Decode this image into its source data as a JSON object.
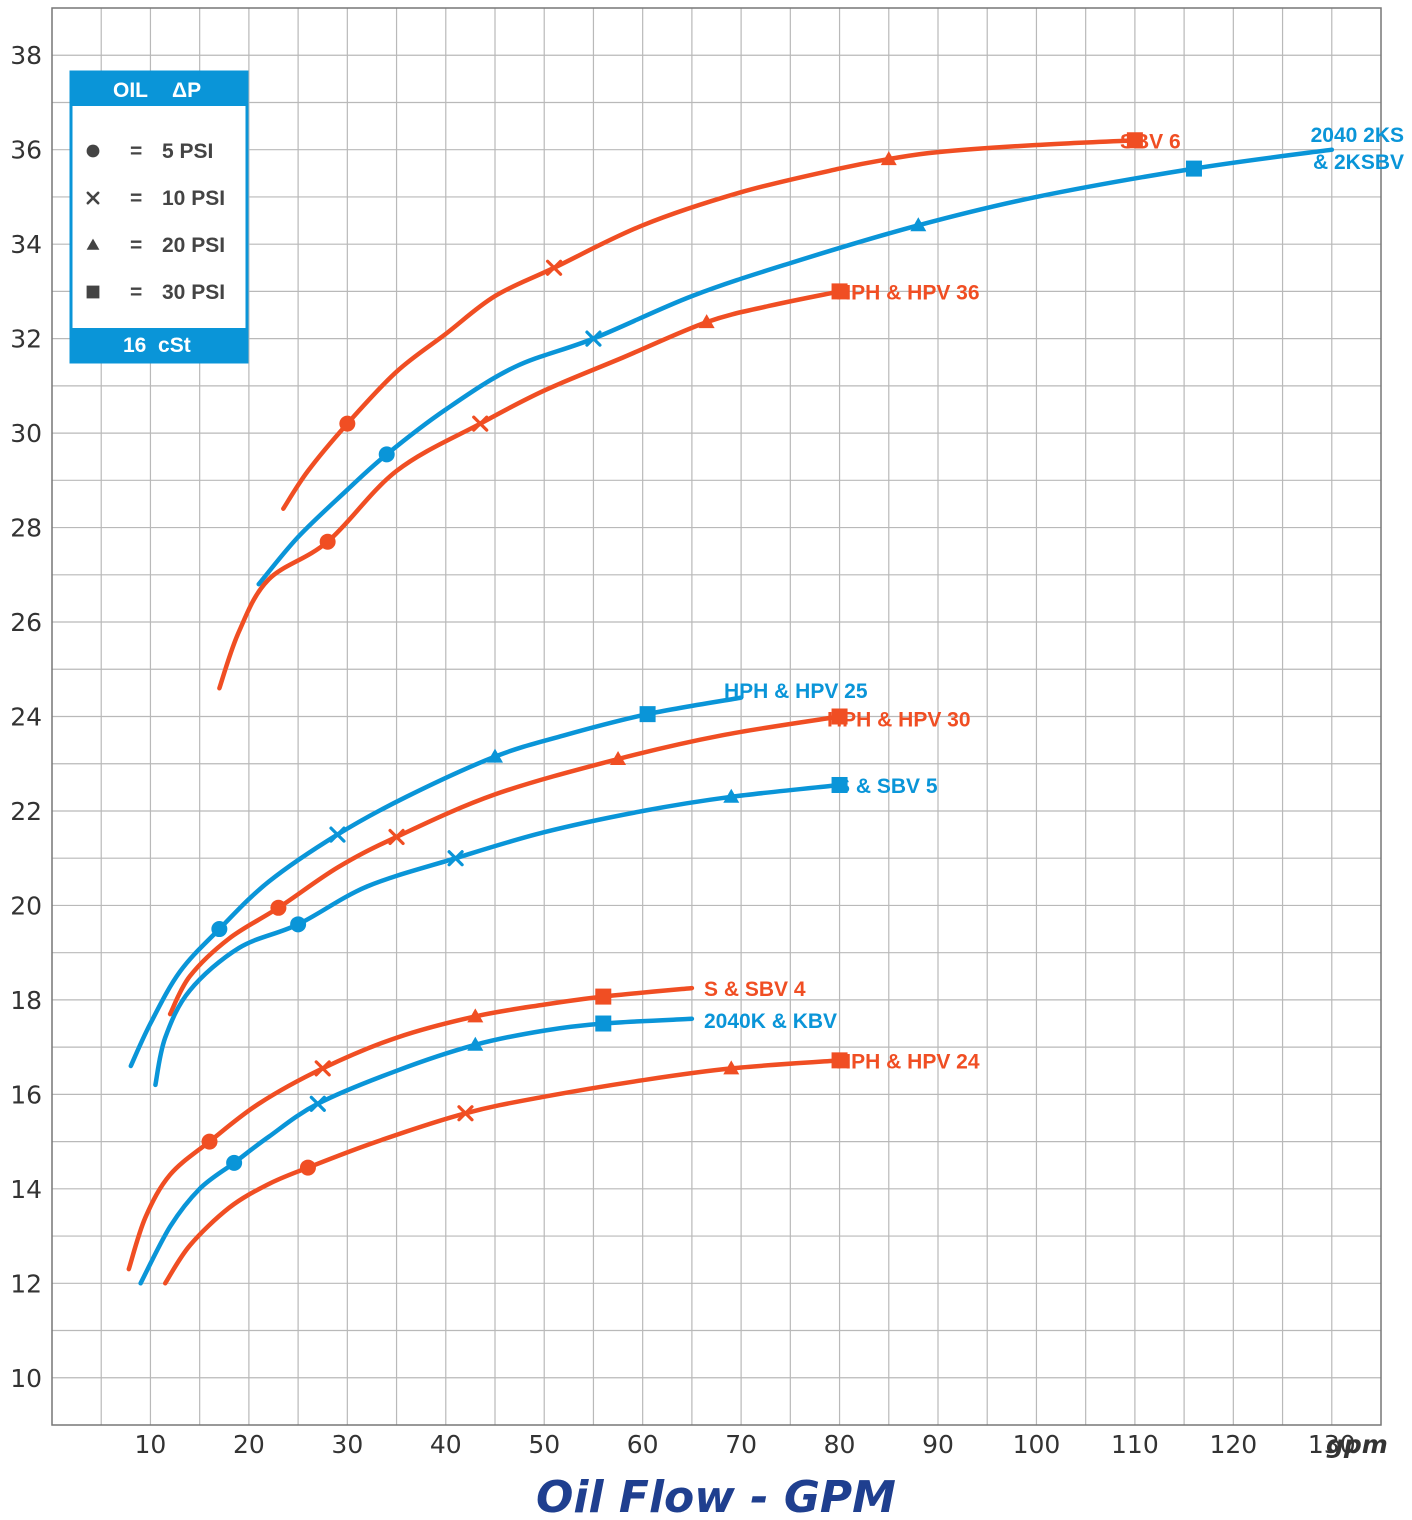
{
  "colors": {
    "orange": "#f04e23",
    "blue": "#0a95d8",
    "grid": "#b9b9b9",
    "axis": "#777777",
    "title": "#1f3f8f",
    "legend_bg": "#0a95d8"
  },
  "legend": {
    "header_oil": "OIL",
    "header_dp": "ΔP",
    "footer": "16  cSt",
    "items": [
      {
        "marker": "circle",
        "eq": "=",
        "text": "5 PSI"
      },
      {
        "marker": "x",
        "eq": "=",
        "text": "10 PSI"
      },
      {
        "marker": "triangle",
        "eq": "=",
        "text": "20 PSI"
      },
      {
        "marker": "square",
        "eq": "=",
        "text": "30 PSI"
      }
    ]
  },
  "chart_data": {
    "type": "line",
    "title": "",
    "xlabel": "Oil Flow - GPM",
    "x_unit": "gpm",
    "ylabel": "",
    "xlim": [
      0,
      135
    ],
    "ylim": [
      9,
      39
    ],
    "x_ticks": [
      10,
      20,
      30,
      40,
      50,
      60,
      70,
      80,
      90,
      100,
      110,
      120,
      130
    ],
    "y_ticks": [
      10,
      12,
      14,
      16,
      18,
      20,
      22,
      24,
      26,
      28,
      30,
      32,
      34,
      36,
      38
    ],
    "grid": true,
    "series": [
      {
        "name": "SBV 6",
        "label_lines": [
          "SBV 6"
        ],
        "color": "orange",
        "curve": [
          [
            23.5,
            28.4
          ],
          [
            26,
            29.2
          ],
          [
            30,
            30.2
          ],
          [
            35,
            31.3
          ],
          [
            40,
            32.1
          ],
          [
            45,
            32.9
          ],
          [
            51,
            33.5
          ],
          [
            60,
            34.4
          ],
          [
            70,
            35.1
          ],
          [
            80,
            35.6
          ],
          [
            85,
            35.8
          ],
          [
            90,
            35.95
          ],
          [
            100,
            36.1
          ],
          [
            110,
            36.2
          ]
        ],
        "markers": [
          [
            30,
            30.2,
            "circle"
          ],
          [
            51,
            33.5,
            "x"
          ],
          [
            85,
            35.8,
            "triangle"
          ],
          [
            110,
            36.2,
            "square"
          ]
        ]
      },
      {
        "name": "2040 2KS & 2KSBV",
        "label_lines": [
          "2040 2KS",
          "& 2KSBV"
        ],
        "color": "blue",
        "curve": [
          [
            21,
            26.8
          ],
          [
            25,
            27.8
          ],
          [
            30,
            28.8
          ],
          [
            34,
            29.55
          ],
          [
            40,
            30.5
          ],
          [
            47,
            31.4
          ],
          [
            55,
            32.0
          ],
          [
            65,
            32.9
          ],
          [
            75,
            33.6
          ],
          [
            88,
            34.4
          ],
          [
            100,
            35.0
          ],
          [
            116,
            35.6
          ],
          [
            130,
            36.0
          ]
        ],
        "markers": [
          [
            34,
            29.55,
            "circle"
          ],
          [
            55,
            32.0,
            "x"
          ],
          [
            88,
            34.4,
            "triangle"
          ],
          [
            116,
            35.6,
            "square"
          ]
        ]
      },
      {
        "name": "HPH & HPV 36",
        "label_lines": [
          "HPH & HPV 36"
        ],
        "color": "orange",
        "curve": [
          [
            17,
            24.6
          ],
          [
            19,
            25.8
          ],
          [
            22,
            26.9
          ],
          [
            28,
            27.7
          ],
          [
            35,
            29.2
          ],
          [
            43.5,
            30.2
          ],
          [
            50,
            30.9
          ],
          [
            58,
            31.6
          ],
          [
            66.5,
            32.35
          ],
          [
            73,
            32.7
          ],
          [
            80,
            33.0
          ]
        ],
        "markers": [
          [
            28,
            27.7,
            "circle"
          ],
          [
            43.5,
            30.2,
            "x"
          ],
          [
            66.5,
            32.35,
            "triangle"
          ],
          [
            80,
            33.0,
            "square"
          ]
        ]
      },
      {
        "name": "HPH & HPV 25",
        "label_lines": [
          "HPH & HPV 25"
        ],
        "color": "blue",
        "curve": [
          [
            8,
            16.6
          ],
          [
            10,
            17.5
          ],
          [
            13,
            18.6
          ],
          [
            17,
            19.5
          ],
          [
            22,
            20.5
          ],
          [
            29,
            21.5
          ],
          [
            36,
            22.3
          ],
          [
            45,
            23.15
          ],
          [
            52,
            23.6
          ],
          [
            60.5,
            24.05
          ],
          [
            70,
            24.4
          ]
        ],
        "markers": [
          [
            17,
            19.5,
            "circle"
          ],
          [
            29,
            21.5,
            "x"
          ],
          [
            45,
            23.15,
            "triangle"
          ],
          [
            60.5,
            24.05,
            "square"
          ]
        ]
      },
      {
        "name": "HPH & HPV 30",
        "label_lines": [
          "HPH & HPV 30"
        ],
        "color": "orange",
        "curve": [
          [
            12,
            17.7
          ],
          [
            14,
            18.5
          ],
          [
            18,
            19.3
          ],
          [
            23,
            19.95
          ],
          [
            29,
            20.8
          ],
          [
            35,
            21.45
          ],
          [
            45,
            22.35
          ],
          [
            57.5,
            23.1
          ],
          [
            68,
            23.6
          ],
          [
            80,
            24.0
          ]
        ],
        "markers": [
          [
            23,
            19.95,
            "circle"
          ],
          [
            35,
            21.45,
            "x"
          ],
          [
            57.5,
            23.1,
            "triangle"
          ],
          [
            80,
            24.0,
            "square"
          ]
        ]
      },
      {
        "name": "S & SBV 5",
        "label_lines": [
          "S & SBV 5"
        ],
        "color": "blue",
        "curve": [
          [
            10.5,
            16.2
          ],
          [
            11.5,
            17.2
          ],
          [
            14,
            18.2
          ],
          [
            19,
            19.1
          ],
          [
            25,
            19.6
          ],
          [
            32,
            20.4
          ],
          [
            41,
            21.0
          ],
          [
            50,
            21.55
          ],
          [
            60,
            22.0
          ],
          [
            69,
            22.3
          ],
          [
            80,
            22.55
          ]
        ],
        "markers": [
          [
            25,
            19.6,
            "circle"
          ],
          [
            41,
            21.0,
            "x"
          ],
          [
            69,
            22.3,
            "triangle"
          ],
          [
            80,
            22.55,
            "square"
          ]
        ]
      },
      {
        "name": "S & SBV 4",
        "label_lines": [
          "S & SBV 4"
        ],
        "color": "orange",
        "curve": [
          [
            7.8,
            12.3
          ],
          [
            9.5,
            13.4
          ],
          [
            12,
            14.3
          ],
          [
            16,
            15.0
          ],
          [
            21,
            15.8
          ],
          [
            27.5,
            16.55
          ],
          [
            35,
            17.2
          ],
          [
            43,
            17.65
          ],
          [
            50,
            17.9
          ],
          [
            56,
            18.07
          ],
          [
            65,
            18.25
          ]
        ],
        "markers": [
          [
            16,
            15.0,
            "circle"
          ],
          [
            27.5,
            16.55,
            "x"
          ],
          [
            43,
            17.65,
            "triangle"
          ],
          [
            56,
            18.07,
            "square"
          ]
        ]
      },
      {
        "name": "2040K & KBV",
        "label_lines": [
          "2040K & KBV"
        ],
        "color": "blue",
        "curve": [
          [
            9,
            12.0
          ],
          [
            12,
            13.2
          ],
          [
            15,
            14.0
          ],
          [
            18.5,
            14.55
          ],
          [
            22,
            15.1
          ],
          [
            27,
            15.8
          ],
          [
            35,
            16.5
          ],
          [
            43,
            17.05
          ],
          [
            50,
            17.35
          ],
          [
            56,
            17.5
          ],
          [
            65,
            17.6
          ]
        ],
        "markers": [
          [
            18.5,
            14.55,
            "circle"
          ],
          [
            27,
            15.8,
            "x"
          ],
          [
            43,
            17.05,
            "triangle"
          ],
          [
            56,
            17.5,
            "square"
          ]
        ]
      },
      {
        "name": "HPH & HPV 24",
        "label_lines": [
          "HPH & HPV 24"
        ],
        "color": "orange",
        "curve": [
          [
            11.5,
            12.0
          ],
          [
            14,
            12.8
          ],
          [
            18,
            13.6
          ],
          [
            22,
            14.1
          ],
          [
            26,
            14.45
          ],
          [
            33,
            15.0
          ],
          [
            42,
            15.6
          ],
          [
            50,
            15.95
          ],
          [
            60,
            16.3
          ],
          [
            69,
            16.55
          ],
          [
            80,
            16.72
          ]
        ],
        "markers": [
          [
            26,
            14.45,
            "circle"
          ],
          [
            42,
            15.6,
            "x"
          ],
          [
            69,
            16.55,
            "triangle"
          ],
          [
            80,
            16.72,
            "square"
          ]
        ]
      }
    ]
  }
}
